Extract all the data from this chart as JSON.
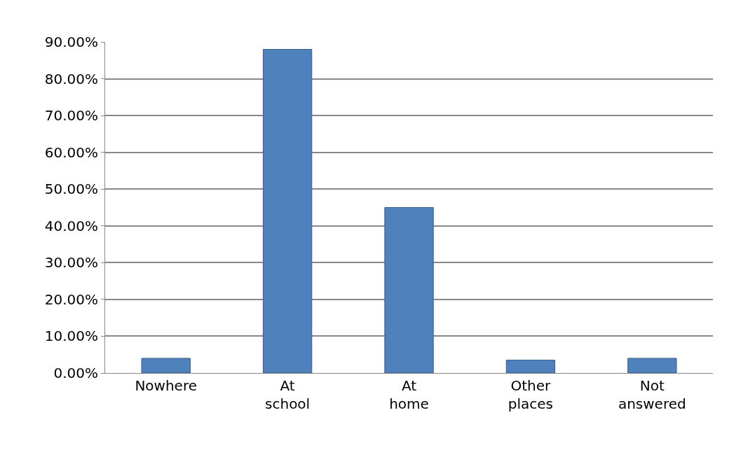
{
  "chart_data": {
    "type": "bar",
    "categories": [
      "Nowhere",
      "At school",
      "At home",
      "Other places",
      "Not answered"
    ],
    "values": [
      4,
      88,
      45,
      3.5,
      4
    ],
    "color": "#4f81bd",
    "ylim": [
      0,
      90
    ],
    "yticks": [
      {
        "value": 0,
        "label": "0.00%"
      },
      {
        "value": 10,
        "label": "10.00%"
      },
      {
        "value": 20,
        "label": "20.00%"
      },
      {
        "value": 30,
        "label": "30.00%"
      },
      {
        "value": 40,
        "label": "40.00%"
      },
      {
        "value": 50,
        "label": "50.00%"
      },
      {
        "value": 60,
        "label": "60.00%"
      },
      {
        "value": 70,
        "label": "70.00%"
      },
      {
        "value": 80,
        "label": "80.00%"
      },
      {
        "value": 90,
        "label": "90.00%"
      }
    ],
    "grid": true
  }
}
